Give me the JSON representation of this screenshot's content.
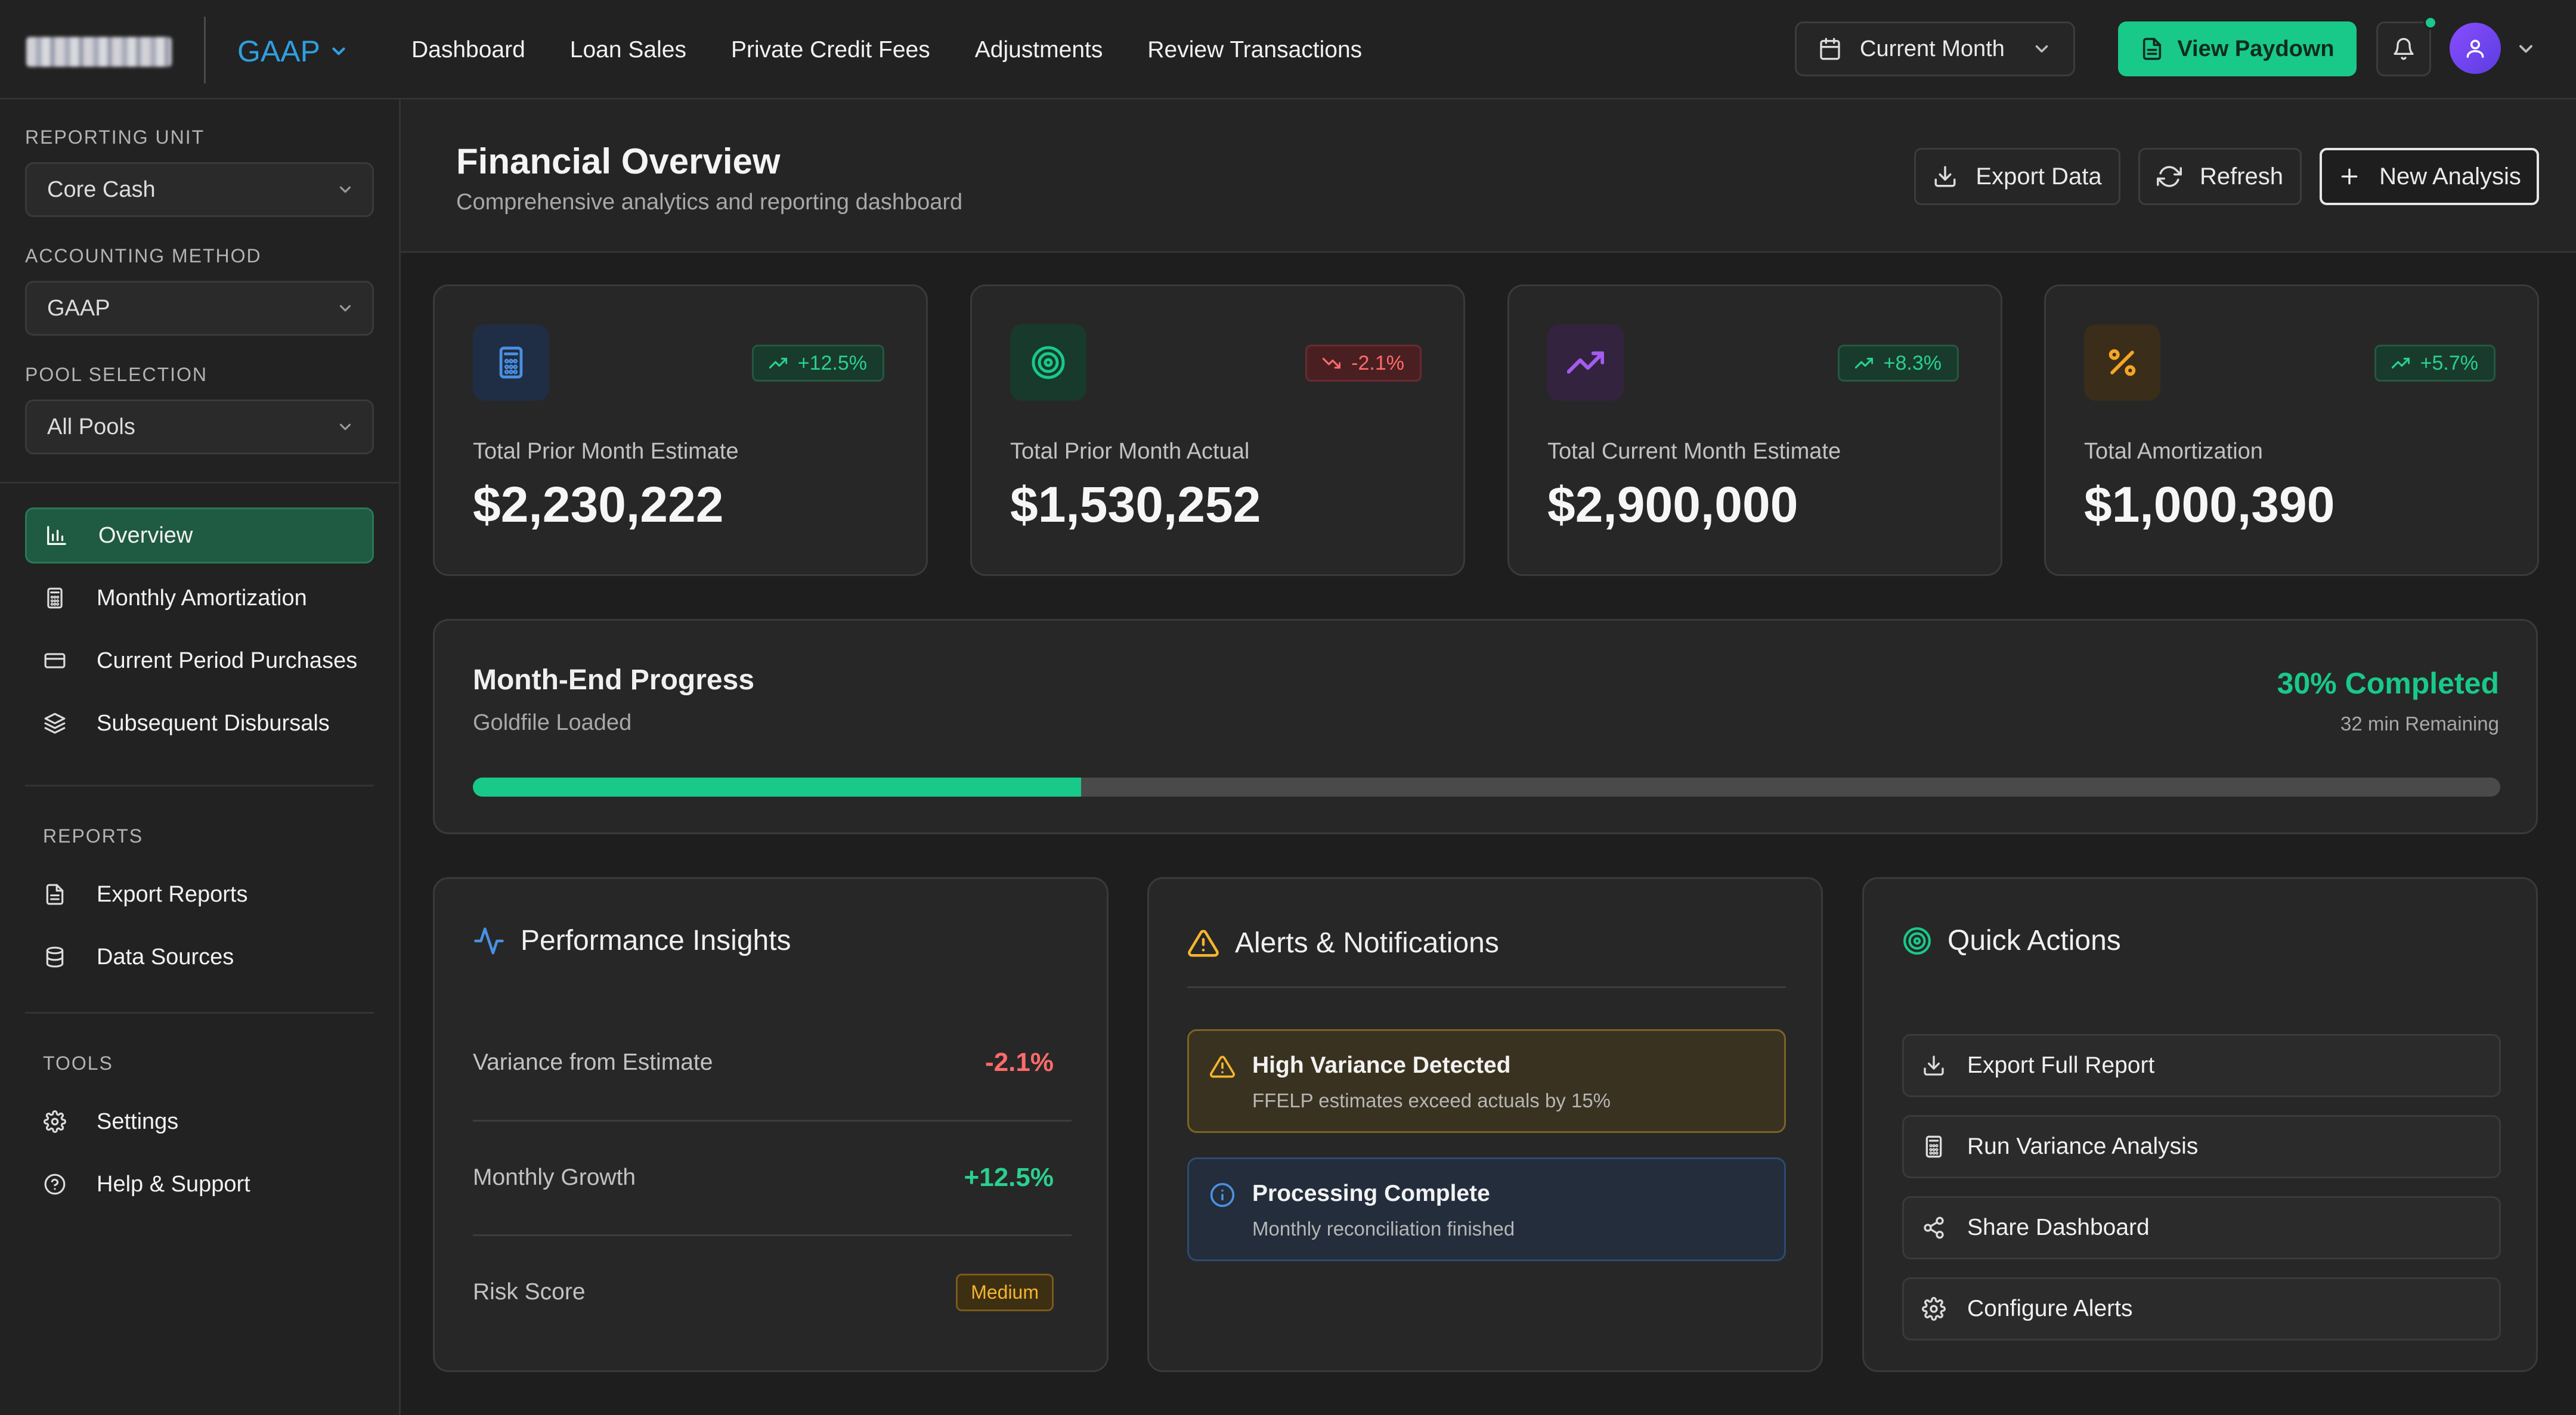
{
  "brand": {
    "logo_text": "NAVIENT"
  },
  "topbar": {
    "standard": "GAAP",
    "nav": [
      "Dashboard",
      "Loan Sales",
      "Private Credit Fees",
      "Adjustments",
      "Review Transactions"
    ],
    "period": "Current Month",
    "paydown_label": "View Paydown"
  },
  "sidebar": {
    "reporting_unit_label": "REPORTING UNIT",
    "reporting_unit_value": "Core Cash",
    "accounting_method_label": "ACCOUNTING METHOD",
    "accounting_method_value": "GAAP",
    "pool_label": "POOL SELECTION",
    "pool_value": "All Pools",
    "nav": [
      "Overview",
      "Monthly Amortization",
      "Current Period Purchases",
      "Subsequent Disbursals"
    ],
    "reports_heading": "REPORTS",
    "reports": [
      "Export Reports",
      "Data Sources"
    ],
    "tools_heading": "TOOLS",
    "tools": [
      "Settings",
      "Help & Support"
    ]
  },
  "header": {
    "title": "Financial Overview",
    "subtitle": "Comprehensive analytics and reporting dashboard",
    "export_label": "Export Data",
    "refresh_label": "Refresh",
    "new_label": "New Analysis"
  },
  "stats": [
    {
      "label": "Total Prior Month Estimate",
      "value": "$2,230,222",
      "change": "+12.5%",
      "trend": "up",
      "icon": "calculator-icon",
      "color": "#4a90e2"
    },
    {
      "label": "Total Prior Month Actual",
      "value": "$1,530,252",
      "change": "-2.1%",
      "trend": "down",
      "icon": "target-icon",
      "color": "#19c98a"
    },
    {
      "label": "Total Current Month Estimate",
      "value": "$2,900,000",
      "change": "+8.3%",
      "trend": "up",
      "icon": "trending-up-icon",
      "color": "#a35cf0"
    },
    {
      "label": "Total Amortization",
      "value": "$1,000,390",
      "change": "+5.7%",
      "trend": "up",
      "icon": "percent-icon",
      "color": "#f5a623"
    }
  ],
  "progress": {
    "title": "Month-End Progress",
    "subtitle": "Goldfile Loaded",
    "percent_label": "30% Completed",
    "percent": 30,
    "remaining": "32 min Remaining"
  },
  "insights": {
    "title": "Performance Insights",
    "rows": [
      {
        "label": "Variance from Estimate",
        "value": "-2.1%"
      },
      {
        "label": "Monthly Growth",
        "value": "+12.5%"
      },
      {
        "label": "Risk Score",
        "value": "Medium"
      }
    ]
  },
  "alerts": {
    "title": "Alerts & Notifications",
    "items": [
      {
        "title": "High Variance Detected",
        "desc": "FFELP estimates exceed actuals by 15%",
        "level": "warning"
      },
      {
        "title": "Processing Complete",
        "desc": "Monthly reconciliation finished",
        "level": "info"
      }
    ]
  },
  "quick_actions": {
    "title": "Quick Actions",
    "items": [
      "Export Full Report",
      "Run Variance Analysis",
      "Share Dashboard",
      "Configure Alerts"
    ]
  },
  "colors": {
    "accent": "#19c98a",
    "negative": "#ff6b6b",
    "warning": "#f5b52e",
    "info": "#4a90e2"
  }
}
